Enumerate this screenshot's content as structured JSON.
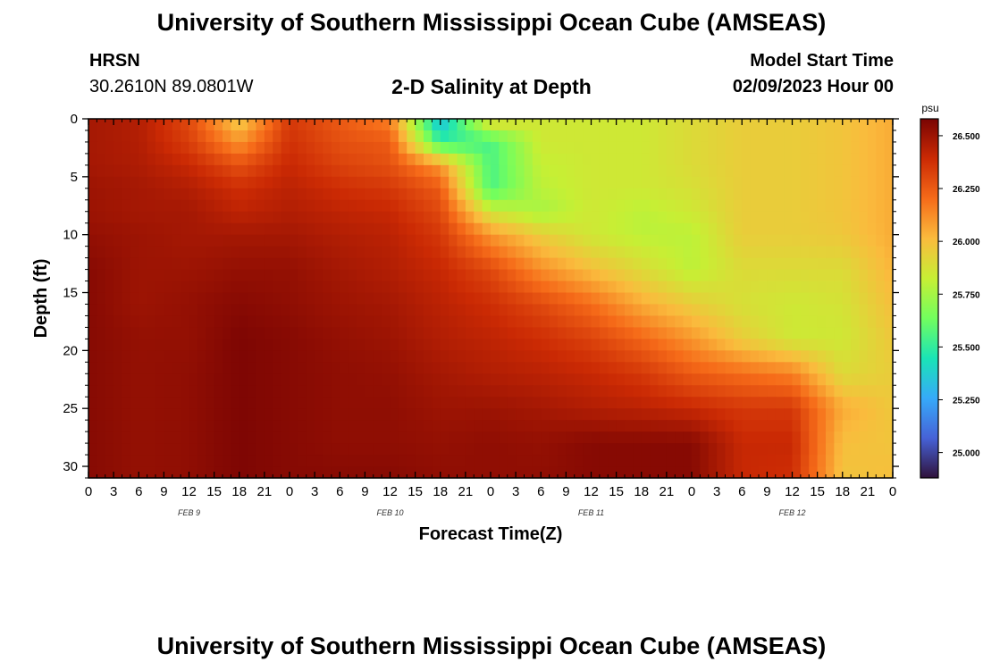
{
  "header": {
    "title": "University of Southern Mississippi Ocean Cube (AMSEAS)",
    "station": "HRSN",
    "coords": "30.2610N  89.0801W",
    "subtitle": "2-D Salinity at Depth",
    "start_label": "Model Start Time",
    "start_value": "02/09/2023 Hour 00"
  },
  "footer": {
    "title": "University of Southern Mississippi Ocean Cube (AMSEAS)"
  },
  "colors": {
    "background": "#ffffff",
    "colormap": [
      "#30123b",
      "#4662d7",
      "#36aaf9",
      "#1ae4b6",
      "#72fe5e",
      "#c7ef34",
      "#fabb3d",
      "#f66b19",
      "#cb2a04",
      "#7a0403"
    ]
  },
  "chart_data": {
    "type": "heatmap",
    "title": "2-D Salinity at Depth",
    "xlabel": "Forecast Time(Z)",
    "ylabel": "Depth (ft)",
    "x_ticks": [
      "0",
      "3",
      "6",
      "9",
      "12",
      "15",
      "18",
      "21",
      "0",
      "3",
      "6",
      "9",
      "12",
      "15",
      "18",
      "21",
      "0",
      "3",
      "6",
      "9",
      "12",
      "15",
      "18",
      "21",
      "0",
      "3",
      "6",
      "9",
      "12",
      "15",
      "18",
      "21",
      "0"
    ],
    "x_hours_range": [
      0,
      96
    ],
    "day_labels": [
      {
        "label": "FEB 9",
        "hour": 12
      },
      {
        "label": "FEB 10",
        "hour": 36
      },
      {
        "label": "FEB 11",
        "hour": 60
      },
      {
        "label": "FEB 12",
        "hour": 84
      }
    ],
    "y_ticks": [
      "0",
      "5",
      "10",
      "15",
      "20",
      "25",
      "30"
    ],
    "ylim": [
      0,
      31
    ],
    "colorbar": {
      "unit": "psu",
      "ticks": [
        "25.000",
        "25.250",
        "25.500",
        "25.750",
        "26.000",
        "26.250",
        "26.500"
      ],
      "range": [
        24.88,
        26.58
      ]
    },
    "grid": {
      "hours": [
        0,
        6,
        12,
        18,
        24,
        30,
        36,
        42,
        48,
        54,
        60,
        66,
        72,
        78,
        84,
        90,
        96
      ],
      "depths": [
        0,
        2,
        4,
        6,
        8,
        10,
        13,
        16,
        19,
        22,
        25,
        28,
        31
      ],
      "values": [
        [
          26.48,
          26.45,
          26.3,
          25.95,
          26.35,
          26.25,
          26.15,
          25.3,
          25.95,
          25.85,
          25.85,
          25.85,
          25.9,
          25.95,
          25.95,
          25.98,
          26.05
        ],
        [
          26.48,
          26.45,
          26.33,
          26.1,
          26.37,
          26.28,
          26.25,
          25.5,
          25.55,
          25.85,
          25.85,
          25.85,
          25.9,
          25.95,
          25.95,
          25.98,
          26.05
        ],
        [
          26.48,
          26.46,
          26.4,
          26.28,
          26.4,
          26.32,
          26.28,
          26.1,
          25.55,
          25.82,
          25.85,
          25.85,
          25.9,
          25.95,
          25.95,
          25.98,
          26.05
        ],
        [
          26.5,
          26.48,
          26.45,
          26.38,
          26.43,
          26.38,
          26.35,
          26.25,
          25.55,
          25.8,
          25.85,
          25.85,
          25.88,
          25.95,
          25.95,
          25.98,
          26.05
        ],
        [
          26.5,
          26.48,
          26.48,
          26.42,
          26.45,
          26.42,
          26.4,
          26.3,
          25.85,
          25.75,
          25.85,
          25.8,
          25.85,
          25.95,
          25.95,
          25.98,
          26.05
        ],
        [
          26.52,
          26.5,
          26.48,
          26.48,
          26.48,
          26.45,
          26.43,
          26.35,
          26.1,
          25.95,
          25.85,
          25.8,
          25.8,
          25.95,
          25.95,
          25.97,
          26.05
        ],
        [
          26.55,
          26.5,
          26.5,
          26.52,
          26.52,
          26.48,
          26.45,
          26.4,
          26.3,
          26.12,
          26.0,
          25.9,
          25.8,
          25.9,
          25.9,
          25.9,
          26.03
        ],
        [
          26.55,
          26.5,
          26.52,
          26.55,
          26.53,
          26.5,
          26.48,
          26.43,
          26.38,
          26.3,
          26.2,
          26.05,
          25.95,
          25.88,
          25.85,
          25.87,
          26.0
        ],
        [
          26.55,
          26.52,
          26.52,
          26.57,
          26.55,
          26.52,
          26.5,
          26.45,
          26.42,
          26.38,
          26.32,
          26.22,
          26.1,
          25.95,
          25.85,
          25.85,
          25.97
        ],
        [
          26.55,
          26.52,
          26.53,
          26.57,
          26.55,
          26.53,
          26.52,
          26.48,
          26.45,
          26.43,
          26.4,
          26.35,
          26.25,
          26.2,
          26.15,
          25.9,
          25.95
        ],
        [
          26.55,
          26.52,
          26.53,
          26.57,
          26.55,
          26.53,
          26.53,
          26.5,
          26.5,
          26.48,
          26.45,
          26.43,
          26.4,
          26.35,
          26.35,
          26.05,
          25.97
        ],
        [
          26.55,
          26.52,
          26.53,
          26.57,
          26.55,
          26.53,
          26.53,
          26.52,
          26.53,
          26.52,
          26.55,
          26.55,
          26.55,
          26.4,
          26.4,
          26.0,
          25.98
        ],
        [
          26.55,
          26.52,
          26.53,
          26.57,
          26.55,
          26.55,
          26.55,
          26.53,
          26.53,
          26.53,
          26.55,
          26.55,
          26.55,
          26.4,
          26.38,
          25.98,
          26.0
        ]
      ]
    }
  }
}
